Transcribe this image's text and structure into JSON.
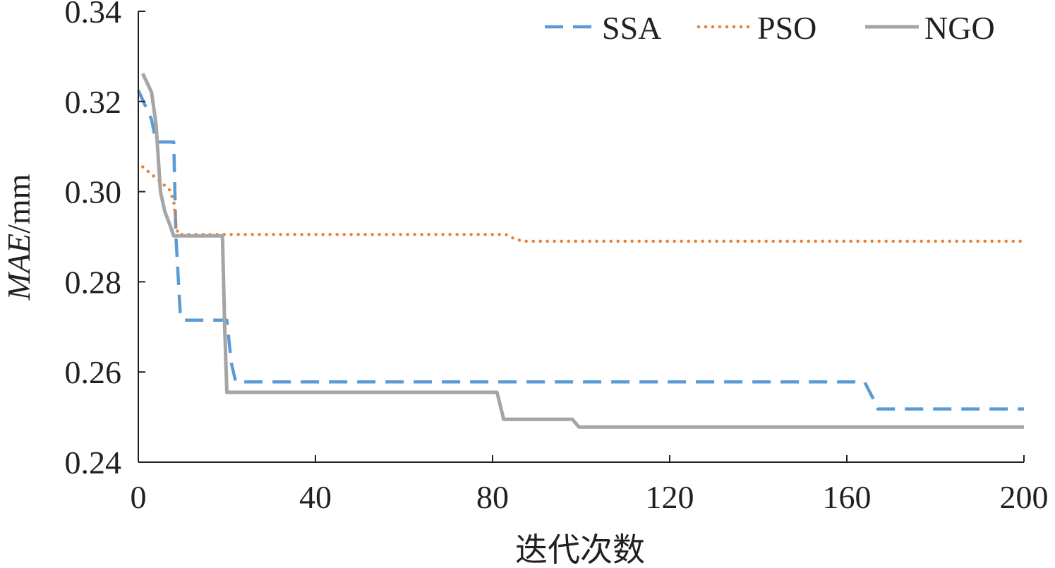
{
  "chart_data": {
    "type": "line",
    "title": "",
    "xlabel": "迭代次数",
    "ylabel_italic": "MAE",
    "ylabel_unit": "/mm",
    "xlim": [
      0,
      200
    ],
    "ylim": [
      0.24,
      0.34
    ],
    "x_ticks": [
      0,
      40,
      80,
      120,
      160,
      200
    ],
    "y_ticks": [
      0.24,
      0.26,
      0.28,
      0.3,
      0.32,
      0.34
    ],
    "x_tick_labels": [
      "0",
      "40",
      "80",
      "120",
      "160",
      "200"
    ],
    "y_tick_labels": [
      "0.24",
      "0.26",
      "0.28",
      "0.30",
      "0.32",
      "0.34"
    ],
    "grid": false,
    "legend_position": "top-right",
    "series": [
      {
        "name": "SSA",
        "color": "#5b9bd5",
        "style": "dashed",
        "x": [
          0,
          3,
          4,
          5,
          8,
          8.5,
          9.5,
          10,
          20,
          21,
          22,
          164,
          166,
          167,
          200
        ],
        "y": [
          0.3225,
          0.316,
          0.311,
          0.311,
          0.311,
          0.29,
          0.2725,
          0.2715,
          0.2715,
          0.262,
          0.2578,
          0.2578,
          0.254,
          0.2518,
          0.2518
        ]
      },
      {
        "name": "PSO",
        "color": "#ed7d31",
        "style": "dotted",
        "x": [
          1,
          4,
          7,
          8,
          8.5,
          9,
          20,
          83,
          85,
          87,
          200
        ],
        "y": [
          0.3055,
          0.303,
          0.3005,
          0.298,
          0.293,
          0.2905,
          0.2905,
          0.2905,
          0.2895,
          0.289,
          0.289
        ]
      },
      {
        "name": "NGO",
        "color": "#a5a5a5",
        "style": "solid",
        "x": [
          1,
          3,
          4,
          5,
          6,
          7,
          8,
          9,
          19,
          19.5,
          20,
          81,
          82.5,
          98,
          99.5,
          200
        ],
        "y": [
          0.3262,
          0.322,
          0.315,
          0.3,
          0.2955,
          0.293,
          0.2902,
          0.2902,
          0.2902,
          0.27,
          0.2555,
          0.2555,
          0.2495,
          0.2495,
          0.2478,
          0.2478
        ]
      }
    ]
  }
}
